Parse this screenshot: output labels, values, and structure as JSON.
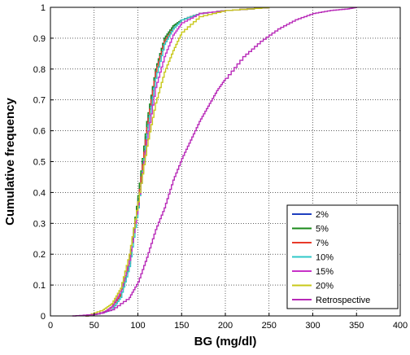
{
  "chart_data": {
    "type": "line",
    "title": "",
    "xlabel": "BG (mg/dl)",
    "ylabel": "Cumulative frequency",
    "xlim": [
      0,
      400
    ],
    "ylim": [
      0,
      1
    ],
    "xticks": [
      0,
      50,
      100,
      150,
      200,
      250,
      300,
      350,
      400
    ],
    "yticks": [
      0,
      0.1,
      0.2,
      0.3,
      0.4,
      0.5,
      0.6,
      0.7,
      0.8,
      0.9,
      1
    ],
    "xtick_labels": [
      "0",
      "50",
      "100",
      "150",
      "200",
      "250",
      "300",
      "350",
      "400"
    ],
    "ytick_labels": [
      "0",
      "0.1",
      "0.2",
      "0.3",
      "0.4",
      "0.5",
      "0.6",
      "0.7",
      "0.8",
      "0.9",
      "1"
    ],
    "grid": true,
    "legend_position": "bottom-right",
    "series": [
      {
        "name": "2%",
        "color": "#1f3fbf",
        "x": [
          40,
          60,
          70,
          80,
          90,
          100,
          110,
          120,
          130,
          140,
          150,
          170,
          200,
          250
        ],
        "y": [
          0,
          0.01,
          0.03,
          0.07,
          0.18,
          0.38,
          0.62,
          0.8,
          0.9,
          0.94,
          0.96,
          0.98,
          0.99,
          1
        ]
      },
      {
        "name": "5%",
        "color": "#1a8a1a",
        "x": [
          40,
          60,
          70,
          80,
          90,
          100,
          110,
          120,
          130,
          140,
          150,
          170,
          200,
          250
        ],
        "y": [
          0,
          0.01,
          0.03,
          0.07,
          0.18,
          0.39,
          0.63,
          0.8,
          0.9,
          0.94,
          0.96,
          0.98,
          0.99,
          1
        ]
      },
      {
        "name": "7%",
        "color": "#e83a2a",
        "x": [
          40,
          60,
          70,
          80,
          90,
          100,
          110,
          120,
          130,
          140,
          150,
          170,
          200,
          250
        ],
        "y": [
          0,
          0.01,
          0.03,
          0.07,
          0.17,
          0.37,
          0.61,
          0.79,
          0.89,
          0.93,
          0.96,
          0.98,
          0.99,
          1
        ]
      },
      {
        "name": "10%",
        "color": "#2fc8c8",
        "x": [
          40,
          60,
          70,
          80,
          90,
          100,
          110,
          120,
          130,
          140,
          150,
          170,
          200,
          250
        ],
        "y": [
          0,
          0.01,
          0.02,
          0.06,
          0.16,
          0.35,
          0.59,
          0.77,
          0.88,
          0.93,
          0.96,
          0.98,
          0.99,
          1
        ]
      },
      {
        "name": "15%",
        "color": "#c832c8",
        "x": [
          40,
          60,
          70,
          80,
          90,
          100,
          110,
          120,
          130,
          140,
          150,
          170,
          200,
          250
        ],
        "y": [
          0,
          0.01,
          0.03,
          0.08,
          0.18,
          0.36,
          0.57,
          0.74,
          0.84,
          0.91,
          0.95,
          0.98,
          0.99,
          1
        ]
      },
      {
        "name": "20%",
        "color": "#c8c81a",
        "x": [
          40,
          60,
          70,
          80,
          90,
          100,
          110,
          120,
          130,
          140,
          150,
          170,
          200,
          250
        ],
        "y": [
          0,
          0.02,
          0.04,
          0.09,
          0.2,
          0.37,
          0.55,
          0.69,
          0.79,
          0.86,
          0.92,
          0.97,
          0.99,
          1
        ]
      },
      {
        "name": "Retrospective",
        "color": "#b82ab8",
        "x": [
          25,
          50,
          70,
          90,
          100,
          110,
          120,
          130,
          140,
          150,
          160,
          170,
          180,
          190,
          200,
          220,
          240,
          260,
          280,
          300,
          320,
          340,
          350
        ],
        "y": [
          0,
          0.005,
          0.02,
          0.06,
          0.11,
          0.19,
          0.28,
          0.35,
          0.44,
          0.51,
          0.57,
          0.63,
          0.68,
          0.73,
          0.77,
          0.84,
          0.89,
          0.93,
          0.96,
          0.98,
          0.99,
          0.995,
          1
        ]
      }
    ]
  }
}
